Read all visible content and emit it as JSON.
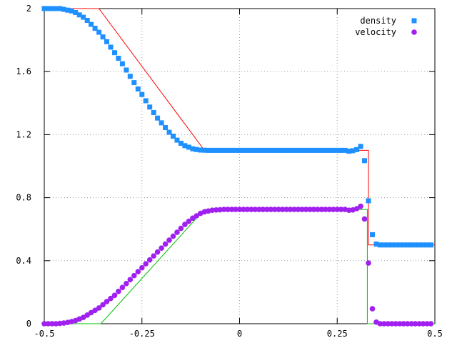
{
  "chart_data": {
    "type": "scatter",
    "xlim": [
      -0.5,
      0.5
    ],
    "ylim": [
      0,
      2
    ],
    "grid": true,
    "legend_position": "top-right",
    "x_ticks": [
      {
        "value": -0.5,
        "label": "-0.5"
      },
      {
        "value": -0.25,
        "label": "-0.25"
      },
      {
        "value": 0,
        "label": "0"
      },
      {
        "value": 0.25,
        "label": "0.25"
      },
      {
        "value": 0.5,
        "label": "0.5"
      }
    ],
    "y_ticks": [
      {
        "value": 0,
        "label": "0"
      },
      {
        "value": 0.4,
        "label": "0.4"
      },
      {
        "value": 0.8,
        "label": "0.8"
      },
      {
        "value": 1.2,
        "label": "1.2"
      },
      {
        "value": 1.6,
        "label": "1.6"
      },
      {
        "value": 2,
        "label": "2"
      }
    ],
    "series": [
      {
        "name": "density",
        "marker": "square",
        "color": "#1e90ff",
        "points": [
          [
            -0.5,
            2.0
          ],
          [
            -0.49,
            2.0
          ],
          [
            -0.48,
            2.0
          ],
          [
            -0.47,
            2.0
          ],
          [
            -0.46,
            2.0
          ],
          [
            -0.45,
            1.995
          ],
          [
            -0.44,
            1.99
          ],
          [
            -0.43,
            1.985
          ],
          [
            -0.42,
            1.975
          ],
          [
            -0.41,
            1.96
          ],
          [
            -0.4,
            1.945
          ],
          [
            -0.39,
            1.925
          ],
          [
            -0.38,
            1.9
          ],
          [
            -0.37,
            1.875
          ],
          [
            -0.36,
            1.85
          ],
          [
            -0.35,
            1.82
          ],
          [
            -0.34,
            1.79
          ],
          [
            -0.33,
            1.755
          ],
          [
            -0.32,
            1.72
          ],
          [
            -0.31,
            1.685
          ],
          [
            -0.3,
            1.65
          ],
          [
            -0.29,
            1.61
          ],
          [
            -0.28,
            1.57
          ],
          [
            -0.27,
            1.53
          ],
          [
            -0.26,
            1.49
          ],
          [
            -0.25,
            1.455
          ],
          [
            -0.24,
            1.415
          ],
          [
            -0.23,
            1.375
          ],
          [
            -0.22,
            1.34
          ],
          [
            -0.21,
            1.305
          ],
          [
            -0.2,
            1.275
          ],
          [
            -0.19,
            1.245
          ],
          [
            -0.18,
            1.215
          ],
          [
            -0.17,
            1.19
          ],
          [
            -0.16,
            1.165
          ],
          [
            -0.15,
            1.145
          ],
          [
            -0.14,
            1.13
          ],
          [
            -0.13,
            1.12
          ],
          [
            -0.12,
            1.11
          ],
          [
            -0.11,
            1.105
          ],
          [
            -0.1,
            1.102
          ],
          [
            -0.09,
            1.101
          ],
          [
            -0.08,
            1.1
          ],
          [
            -0.07,
            1.1
          ],
          [
            -0.06,
            1.1
          ],
          [
            -0.05,
            1.1
          ],
          [
            -0.04,
            1.1
          ],
          [
            -0.03,
            1.1
          ],
          [
            -0.02,
            1.1
          ],
          [
            -0.01,
            1.1
          ],
          [
            0.0,
            1.1
          ],
          [
            0.01,
            1.1
          ],
          [
            0.02,
            1.1
          ],
          [
            0.03,
            1.1
          ],
          [
            0.04,
            1.1
          ],
          [
            0.05,
            1.1
          ],
          [
            0.06,
            1.1
          ],
          [
            0.07,
            1.1
          ],
          [
            0.08,
            1.1
          ],
          [
            0.09,
            1.1
          ],
          [
            0.1,
            1.1
          ],
          [
            0.11,
            1.1
          ],
          [
            0.12,
            1.1
          ],
          [
            0.13,
            1.1
          ],
          [
            0.14,
            1.1
          ],
          [
            0.15,
            1.1
          ],
          [
            0.16,
            1.1
          ],
          [
            0.17,
            1.1
          ],
          [
            0.18,
            1.1
          ],
          [
            0.19,
            1.1
          ],
          [
            0.2,
            1.1
          ],
          [
            0.21,
            1.1
          ],
          [
            0.22,
            1.1
          ],
          [
            0.23,
            1.1
          ],
          [
            0.24,
            1.1
          ],
          [
            0.25,
            1.1
          ],
          [
            0.26,
            1.1
          ],
          [
            0.27,
            1.1
          ],
          [
            0.28,
            1.095
          ],
          [
            0.29,
            1.098
          ],
          [
            0.3,
            1.105
          ],
          [
            0.31,
            1.125
          ],
          [
            0.32,
            1.035
          ],
          [
            0.33,
            0.78
          ],
          [
            0.34,
            0.565
          ],
          [
            0.35,
            0.505
          ],
          [
            0.36,
            0.5
          ],
          [
            0.37,
            0.5
          ],
          [
            0.38,
            0.5
          ],
          [
            0.39,
            0.5
          ],
          [
            0.4,
            0.5
          ],
          [
            0.41,
            0.5
          ],
          [
            0.42,
            0.5
          ],
          [
            0.43,
            0.5
          ],
          [
            0.44,
            0.5
          ],
          [
            0.45,
            0.5
          ],
          [
            0.46,
            0.5
          ],
          [
            0.47,
            0.5
          ],
          [
            0.48,
            0.5
          ],
          [
            0.49,
            0.5
          ]
        ]
      },
      {
        "name": "velocity",
        "marker": "circle",
        "color": "#a020f0",
        "points": [
          [
            -0.5,
            0.0
          ],
          [
            -0.49,
            0.0
          ],
          [
            -0.48,
            0.0
          ],
          [
            -0.47,
            0.0
          ],
          [
            -0.46,
            0.002
          ],
          [
            -0.45,
            0.004
          ],
          [
            -0.44,
            0.008
          ],
          [
            -0.43,
            0.013
          ],
          [
            -0.42,
            0.02
          ],
          [
            -0.41,
            0.03
          ],
          [
            -0.4,
            0.04
          ],
          [
            -0.39,
            0.055
          ],
          [
            -0.38,
            0.07
          ],
          [
            -0.37,
            0.085
          ],
          [
            -0.36,
            0.1
          ],
          [
            -0.35,
            0.12
          ],
          [
            -0.34,
            0.14
          ],
          [
            -0.33,
            0.16
          ],
          [
            -0.32,
            0.18
          ],
          [
            -0.31,
            0.205
          ],
          [
            -0.3,
            0.23
          ],
          [
            -0.29,
            0.255
          ],
          [
            -0.28,
            0.28
          ],
          [
            -0.27,
            0.305
          ],
          [
            -0.26,
            0.33
          ],
          [
            -0.25,
            0.355
          ],
          [
            -0.24,
            0.38
          ],
          [
            -0.23,
            0.405
          ],
          [
            -0.22,
            0.43
          ],
          [
            -0.21,
            0.455
          ],
          [
            -0.2,
            0.48
          ],
          [
            -0.19,
            0.505
          ],
          [
            -0.18,
            0.53
          ],
          [
            -0.17,
            0.555
          ],
          [
            -0.16,
            0.58
          ],
          [
            -0.15,
            0.605
          ],
          [
            -0.14,
            0.63
          ],
          [
            -0.13,
            0.65
          ],
          [
            -0.12,
            0.67
          ],
          [
            -0.11,
            0.685
          ],
          [
            -0.1,
            0.7
          ],
          [
            -0.09,
            0.71
          ],
          [
            -0.08,
            0.715
          ],
          [
            -0.07,
            0.72
          ],
          [
            -0.06,
            0.722
          ],
          [
            -0.05,
            0.723
          ],
          [
            -0.04,
            0.725
          ],
          [
            -0.03,
            0.725
          ],
          [
            -0.02,
            0.725
          ],
          [
            -0.01,
            0.725
          ],
          [
            0.0,
            0.725
          ],
          [
            0.01,
            0.725
          ],
          [
            0.02,
            0.725
          ],
          [
            0.03,
            0.725
          ],
          [
            0.04,
            0.725
          ],
          [
            0.05,
            0.725
          ],
          [
            0.06,
            0.725
          ],
          [
            0.07,
            0.725
          ],
          [
            0.08,
            0.725
          ],
          [
            0.09,
            0.725
          ],
          [
            0.1,
            0.725
          ],
          [
            0.11,
            0.725
          ],
          [
            0.12,
            0.725
          ],
          [
            0.13,
            0.725
          ],
          [
            0.14,
            0.725
          ],
          [
            0.15,
            0.725
          ],
          [
            0.16,
            0.725
          ],
          [
            0.17,
            0.725
          ],
          [
            0.18,
            0.725
          ],
          [
            0.19,
            0.725
          ],
          [
            0.2,
            0.725
          ],
          [
            0.21,
            0.725
          ],
          [
            0.22,
            0.725
          ],
          [
            0.23,
            0.725
          ],
          [
            0.24,
            0.725
          ],
          [
            0.25,
            0.725
          ],
          [
            0.26,
            0.725
          ],
          [
            0.27,
            0.725
          ],
          [
            0.28,
            0.72
          ],
          [
            0.29,
            0.722
          ],
          [
            0.3,
            0.73
          ],
          [
            0.31,
            0.745
          ],
          [
            0.32,
            0.665
          ],
          [
            0.33,
            0.385
          ],
          [
            0.34,
            0.095
          ],
          [
            0.35,
            0.01
          ],
          [
            0.36,
            0.0
          ],
          [
            0.37,
            0.0
          ],
          [
            0.38,
            0.0
          ],
          [
            0.39,
            0.0
          ],
          [
            0.4,
            0.0
          ],
          [
            0.41,
            0.0
          ],
          [
            0.42,
            0.0
          ],
          [
            0.43,
            0.0
          ],
          [
            0.44,
            0.0
          ],
          [
            0.45,
            0.0
          ],
          [
            0.46,
            0.0
          ],
          [
            0.47,
            0.0
          ],
          [
            0.48,
            0.0
          ],
          [
            0.49,
            0.0
          ]
        ]
      }
    ],
    "lines": [
      {
        "color": "#ff0000",
        "points": [
          [
            -0.5,
            2.0
          ],
          [
            -0.36,
            2.0
          ],
          [
            -0.09,
            1.1
          ],
          [
            0.33,
            1.1
          ],
          [
            0.33,
            0.5
          ],
          [
            0.5,
            0.5
          ]
        ]
      },
      {
        "color": "#00c000",
        "points": [
          [
            -0.5,
            0.0
          ],
          [
            -0.355,
            0.0
          ],
          [
            -0.09,
            0.725
          ],
          [
            0.327,
            0.725
          ],
          [
            0.327,
            0.0
          ],
          [
            0.5,
            0.0
          ]
        ]
      }
    ]
  }
}
